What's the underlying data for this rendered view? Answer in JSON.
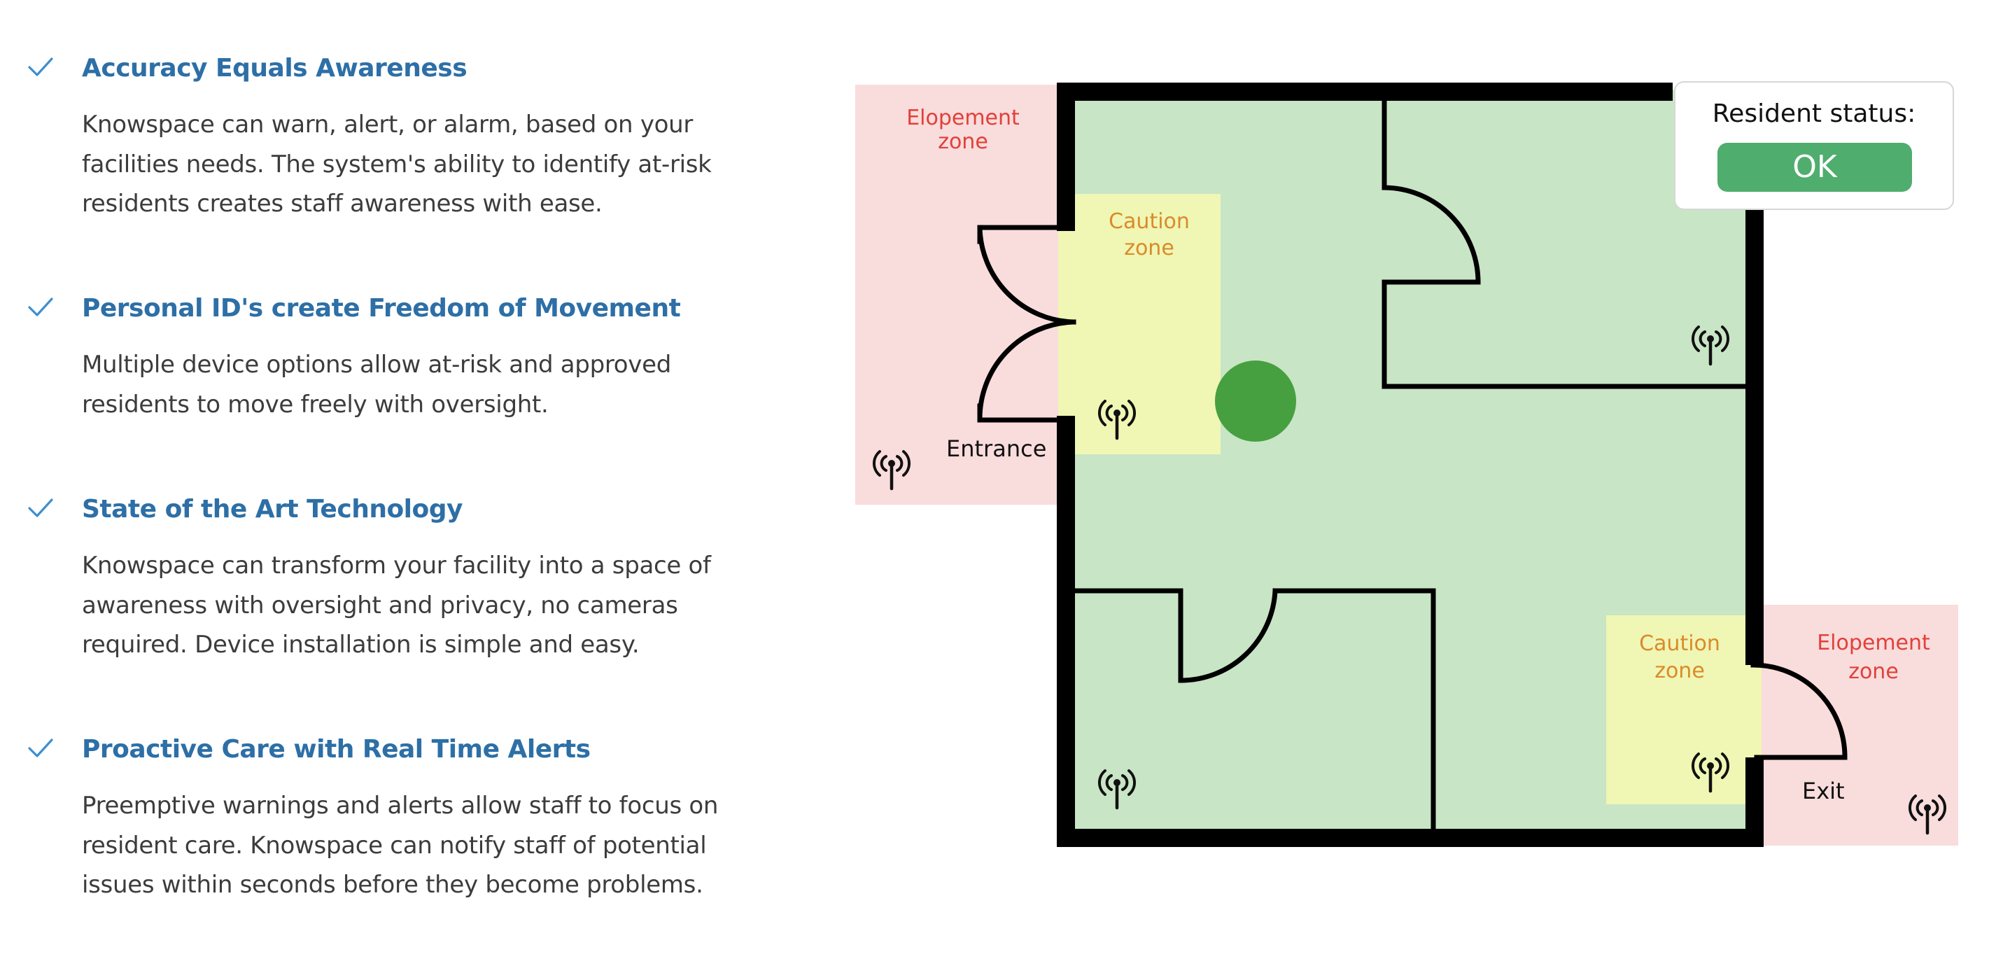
{
  "features": [
    {
      "title": "Accuracy Equals Awareness",
      "body": "Knowspace can warn, alert,  or alarm, based on your\nfacilities needs.  The  system's ability to identify at-risk\nresidents creates staff awareness with ease."
    },
    {
      "title": "Personal ID's create Freedom of Movement",
      "body": "Multiple device options allow at-risk and approved\nresidents to move freely with oversight."
    },
    {
      "title": "State of the Art Technology",
      "body": "Knowspace can transform your facility into a space of\nawareness with oversight and privacy, no cameras\nrequired.  Device installation is simple and easy."
    },
    {
      "title": "Proactive Care with Real Time Alerts",
      "body": "Preemptive warnings and alerts allow staff to focus on\nresident care.  Knowspace can notify staff of potential\nissues within seconds before they become problems."
    }
  ],
  "floorplan": {
    "elopement_zone_1": [
      "Elopement",
      "zone"
    ],
    "elopement_zone_2": [
      "Elopement",
      "zone"
    ],
    "caution_zone_1": [
      "Caution",
      "zone"
    ],
    "caution_zone_2": [
      "Caution",
      "zone"
    ],
    "entrance_label": "Entrance",
    "exit_label": "Exit"
  },
  "status": {
    "label": "Resident status:",
    "value": "OK"
  },
  "colors": {
    "title_blue": "#2d6fa6",
    "check_blue": "#3d8fd0",
    "elopement_fill": "#f9dcdc",
    "elopement_text": "#e0413a",
    "caution_fill": "#f0f6b4",
    "caution_text": "#d98b2a",
    "floor_fill": "#c8e5c5",
    "resident_dot": "#46a040",
    "status_ok": "#4fad6e"
  },
  "icons": [
    "check-icon",
    "wireless-sensor-icon"
  ]
}
